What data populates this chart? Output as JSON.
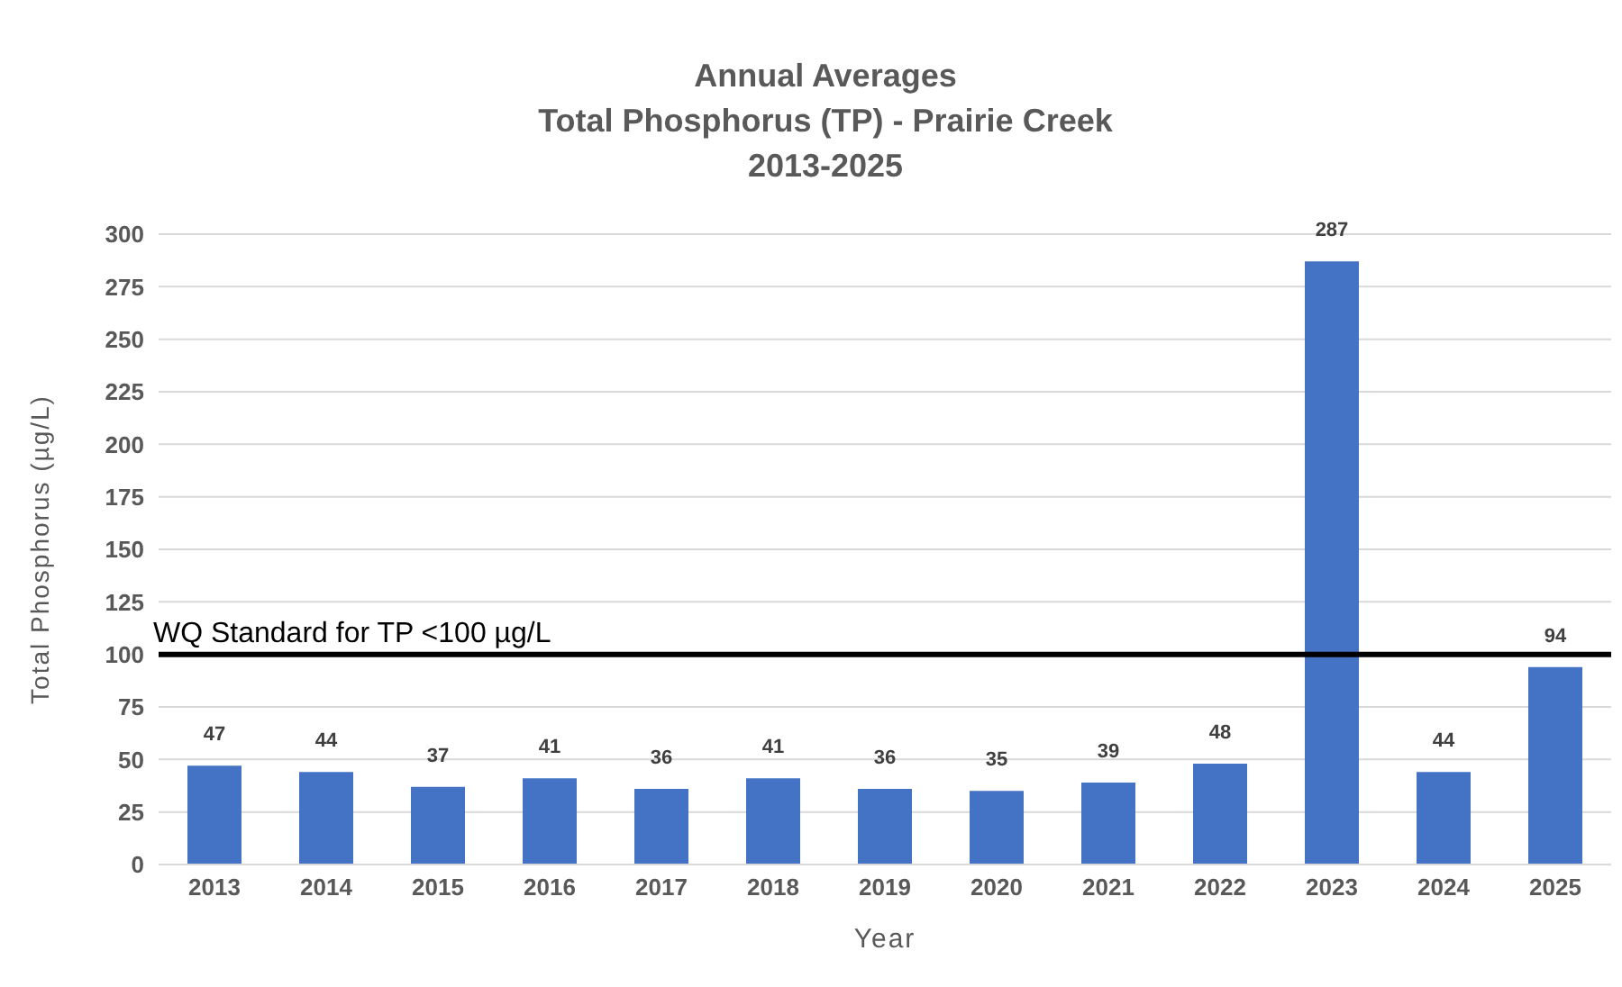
{
  "chart_data": {
    "type": "bar",
    "title": "Annual Averages\nTotal Phosphorus  (TP) - Prairie Creek\n2013-2025",
    "xlabel": "Year",
    "ylabel": "Total Phosphorus (µg/L)",
    "categories": [
      "2013",
      "2014",
      "2015",
      "2016",
      "2017",
      "2018",
      "2019",
      "2020",
      "2021",
      "2022",
      "2023",
      "2024",
      "2025"
    ],
    "values": [
      47,
      44,
      37,
      41,
      36,
      41,
      36,
      35,
      39,
      48,
      287,
      44,
      94
    ],
    "color": "#4472c4",
    "ylim": [
      0,
      300
    ],
    "yticks": [
      0,
      25,
      50,
      75,
      100,
      125,
      150,
      175,
      200,
      225,
      250,
      275,
      300
    ],
    "grid": "y",
    "data_labels": true,
    "legend": false,
    "ref_lines": [
      {
        "axis": "y",
        "value": 100,
        "label": "WQ Standard for TP <100 µg/L",
        "color": "#000000",
        "line_style": "solid"
      }
    ]
  }
}
